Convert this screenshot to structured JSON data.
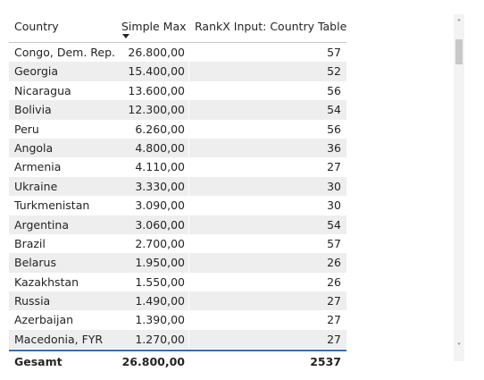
{
  "table": {
    "headers": {
      "country": "Country",
      "simple_max": "Simple Max",
      "rankx": "RankX Input: Country Table"
    },
    "rows": [
      {
        "country": "Congo, Dem. Rep.",
        "simple_max": "26.800,00",
        "rank": "57"
      },
      {
        "country": "Georgia",
        "simple_max": "15.400,00",
        "rank": "52"
      },
      {
        "country": "Nicaragua",
        "simple_max": "13.600,00",
        "rank": "56"
      },
      {
        "country": "Bolivia",
        "simple_max": "12.300,00",
        "rank": "54"
      },
      {
        "country": "Peru",
        "simple_max": "6.260,00",
        "rank": "56"
      },
      {
        "country": "Angola",
        "simple_max": "4.800,00",
        "rank": "36"
      },
      {
        "country": "Armenia",
        "simple_max": "4.110,00",
        "rank": "27"
      },
      {
        "country": "Ukraine",
        "simple_max": "3.330,00",
        "rank": "30"
      },
      {
        "country": "Turkmenistan",
        "simple_max": "3.090,00",
        "rank": "30"
      },
      {
        "country": "Argentina",
        "simple_max": "3.060,00",
        "rank": "54"
      },
      {
        "country": "Brazil",
        "simple_max": "2.700,00",
        "rank": "57"
      },
      {
        "country": "Belarus",
        "simple_max": "1.950,00",
        "rank": "26"
      },
      {
        "country": "Kazakhstan",
        "simple_max": "1.550,00",
        "rank": "26"
      },
      {
        "country": "Russia",
        "simple_max": "1.490,00",
        "rank": "27"
      },
      {
        "country": "Azerbaijan",
        "simple_max": "1.390,00",
        "rank": "27"
      },
      {
        "country": "Macedonia, FYR",
        "simple_max": "1.270,00",
        "rank": "27"
      }
    ],
    "total": {
      "label": "Gesamt",
      "simple_max": "26.800,00",
      "rank": "2537"
    },
    "sort": {
      "column": "Simple Max",
      "direction": "descending",
      "icon": "sort-descending-icon"
    }
  },
  "scrollbar": {
    "up_icon": "chevron-up-icon",
    "up_glyph": "˄",
    "down_icon": "chevron-down-icon",
    "down_glyph": "˅"
  },
  "colors": {
    "alt_row": "#eeeeee",
    "total_border": "#2f6fb6",
    "text": "#252423"
  }
}
